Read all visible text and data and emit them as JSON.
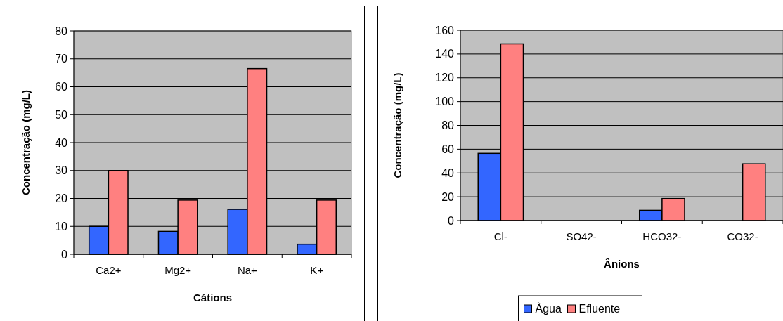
{
  "chart_data": [
    {
      "type": "bar",
      "xlabel": "Cátions",
      "ylabel": "Concentração (mg/L)",
      "categories": [
        "Ca2+",
        "Mg2+",
        "Na+",
        "K+"
      ],
      "series": [
        {
          "color": "#3366ff",
          "values": [
            10,
            8.2,
            16.1,
            3.6
          ]
        },
        {
          "color": "#ff8080",
          "values": [
            30,
            19.4,
            66.5,
            19.4
          ]
        }
      ],
      "ylim": [
        0,
        80
      ],
      "yticks": [
        0,
        10,
        20,
        30,
        40,
        50,
        60,
        70,
        80
      ],
      "grid": "y",
      "legend": false
    },
    {
      "type": "bar",
      "xlabel": "Ânions",
      "ylabel": "Concentração (mg/L)",
      "categories": [
        "Cl-",
        "SO42-",
        "HCO32-",
        "CO32-"
      ],
      "series": [
        {
          "name": "Àgua",
          "color": "#3366ff",
          "values": [
            56.5,
            null,
            8.6,
            null
          ]
        },
        {
          "name": "Efluente",
          "color": "#ff8080",
          "values": [
            148.5,
            null,
            18.5,
            47.7
          ]
        }
      ],
      "ylim": [
        0,
        160
      ],
      "yticks": [
        0,
        20,
        40,
        60,
        80,
        100,
        120,
        140,
        160
      ],
      "grid": "y",
      "legend": "bottom"
    }
  ]
}
